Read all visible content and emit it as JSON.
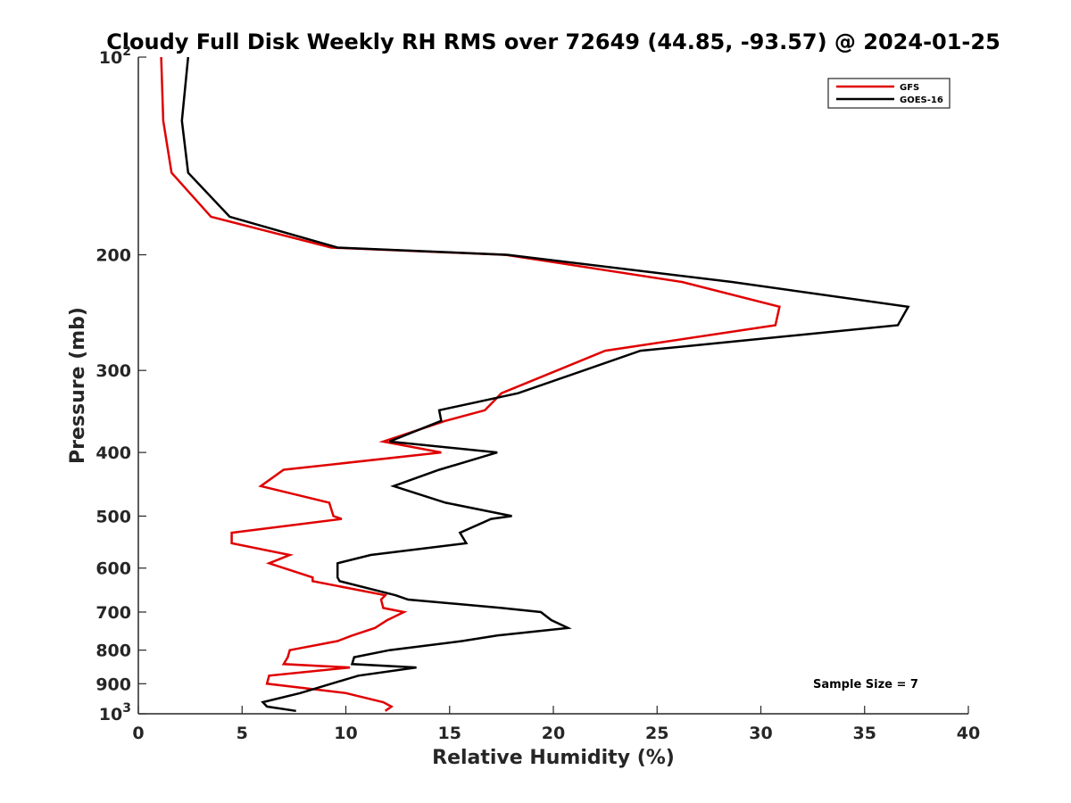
{
  "chart_data": {
    "type": "line",
    "title": "Cloudy Full Disk Weekly RH RMS over 72649 (44.85, -93.57) @ 2024-01-25",
    "xlabel": "Relative Humidity (%)",
    "ylabel": "Pressure (mb)",
    "xlim": [
      0,
      40
    ],
    "ylim": [
      100,
      1000
    ],
    "y_scale": "log",
    "y_reversed": true,
    "x_ticks": [
      0,
      5,
      10,
      15,
      20,
      25,
      30,
      35,
      40
    ],
    "x_tick_labels": [
      "0",
      "5",
      "10",
      "15",
      "20",
      "25",
      "30",
      "35",
      "40"
    ],
    "y_ticks": [
      100,
      200,
      300,
      400,
      500,
      600,
      700,
      800,
      900,
      1000
    ],
    "y_tick_labels": [
      {
        "base": "10",
        "exp": "2"
      },
      {
        "base": "200",
        "exp": ""
      },
      {
        "base": "300",
        "exp": ""
      },
      {
        "base": "400",
        "exp": ""
      },
      {
        "base": "500",
        "exp": ""
      },
      {
        "base": "600",
        "exp": ""
      },
      {
        "base": "700",
        "exp": ""
      },
      {
        "base": "800",
        "exp": ""
      },
      {
        "base": "900",
        "exp": ""
      },
      {
        "base": "10",
        "exp": "3"
      }
    ],
    "grid": false,
    "legend_position": "top-right",
    "annotation": "Sample Size = 7",
    "series": [
      {
        "name": "GFS",
        "color": "#e00000",
        "points": [
          [
            1.1,
            100
          ],
          [
            1.2,
            125
          ],
          [
            1.6,
            150
          ],
          [
            3.5,
            175
          ],
          [
            9.3,
            195
          ],
          [
            17.7,
            200
          ],
          [
            26.2,
            220
          ],
          [
            30.9,
            240
          ],
          [
            30.7,
            256
          ],
          [
            22.5,
            280
          ],
          [
            17.5,
            325
          ],
          [
            16.7,
            345
          ],
          [
            14.8,
            358
          ],
          [
            11.8,
            385
          ],
          [
            14.6,
            400
          ],
          [
            7.0,
            425
          ],
          [
            5.9,
            450
          ],
          [
            9.2,
            477
          ],
          [
            9.4,
            500
          ],
          [
            9.8,
            505
          ],
          [
            4.5,
            530
          ],
          [
            4.5,
            550
          ],
          [
            7.3,
            573
          ],
          [
            6.3,
            590
          ],
          [
            8.4,
            620
          ],
          [
            8.4,
            628
          ],
          [
            11.9,
            660
          ],
          [
            11.7,
            670
          ],
          [
            11.8,
            690
          ],
          [
            12.8,
            700
          ],
          [
            12.0,
            720
          ],
          [
            11.4,
            740
          ],
          [
            10.3,
            760
          ],
          [
            9.6,
            775
          ],
          [
            7.3,
            800
          ],
          [
            7.2,
            820
          ],
          [
            7.0,
            840
          ],
          [
            10.2,
            850
          ],
          [
            6.3,
            875
          ],
          [
            6.2,
            900
          ],
          [
            10.0,
            930
          ],
          [
            11.8,
            960
          ],
          [
            12.2,
            975
          ],
          [
            11.9,
            990
          ]
        ]
      },
      {
        "name": "GOES-16",
        "color": "#000000",
        "points": [
          [
            2.4,
            100
          ],
          [
            2.1,
            125
          ],
          [
            2.4,
            150
          ],
          [
            4.4,
            175
          ],
          [
            9.6,
            195
          ],
          [
            17.8,
            200
          ],
          [
            28.6,
            220
          ],
          [
            37.1,
            240
          ],
          [
            36.6,
            256
          ],
          [
            24.2,
            280
          ],
          [
            18.3,
            325
          ],
          [
            14.5,
            345
          ],
          [
            14.6,
            358
          ],
          [
            12.1,
            385
          ],
          [
            17.3,
            400
          ],
          [
            14.5,
            425
          ],
          [
            12.3,
            450
          ],
          [
            14.8,
            477
          ],
          [
            18.0,
            500
          ],
          [
            17.0,
            505
          ],
          [
            15.5,
            530
          ],
          [
            15.8,
            550
          ],
          [
            11.2,
            573
          ],
          [
            9.6,
            590
          ],
          [
            9.6,
            620
          ],
          [
            9.7,
            628
          ],
          [
            12.4,
            660
          ],
          [
            13.0,
            670
          ],
          [
            17.5,
            690
          ],
          [
            19.4,
            700
          ],
          [
            19.9,
            720
          ],
          [
            20.7,
            740
          ],
          [
            17.3,
            760
          ],
          [
            15.6,
            775
          ],
          [
            12.1,
            800
          ],
          [
            10.4,
            820
          ],
          [
            10.3,
            840
          ],
          [
            13.4,
            850
          ],
          [
            10.6,
            875
          ],
          [
            9.3,
            900
          ],
          [
            7.8,
            930
          ],
          [
            6.0,
            960
          ],
          [
            6.2,
            975
          ],
          [
            7.6,
            990
          ]
        ]
      }
    ]
  }
}
